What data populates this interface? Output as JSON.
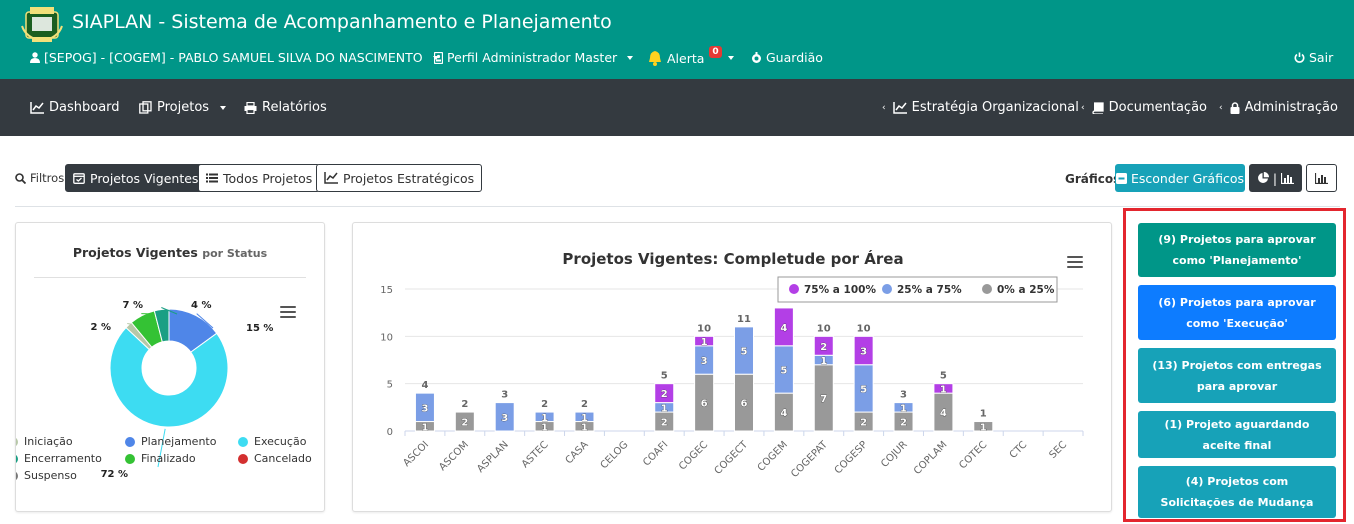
{
  "header": {
    "app_title": "SIAPLAN - Sistema de Acompanhamento e Planejamento",
    "user_label": "[SEPOG] - [COGEM] - PABLO SAMUEL SILVA DO NASCIMENTO",
    "profile_label": "Perfil Administrador Master",
    "alert_label": "Alerta",
    "alert_count": "0",
    "guardian_label": "Guardião",
    "logout_label": "Sair"
  },
  "nav": {
    "dashboard": "Dashboard",
    "projects": "Projetos",
    "reports": "Relatórios",
    "strategy": "Estratégia Organizacional",
    "docs": "Documentação",
    "admin": "Administração"
  },
  "filters": {
    "label": "Filtros:",
    "current": "Projetos Vigentes",
    "all": "Todos Projetos",
    "strategic": "Projetos Estratégicos",
    "charts_label": "Gráficos:",
    "hide_charts": "Esconder Gráficos",
    "chart_type_pie_bar": "|",
    "colors": {
      "teal": "#17a2b8",
      "dark": "#343a40"
    }
  },
  "pie_chart": {
    "title": "Projetos Vigentes",
    "subtitle": "por Status",
    "chart_data": {
      "type": "pie",
      "slices": [
        {
          "name": "Planejamento",
          "value": 15,
          "label": "15 %",
          "color": "#4f86e8"
        },
        {
          "name": "Execução",
          "value": 72,
          "label": "72 %",
          "color": "#3ddcf2"
        },
        {
          "name": "Iniciação",
          "value": 2,
          "label": "2 %",
          "color": "#b7c8a8"
        },
        {
          "name": "Finalizado",
          "value": 7,
          "label": "7 %",
          "color": "#34c234"
        },
        {
          "name": "Encerramento",
          "value": 4,
          "label": "4 %",
          "color": "#1a9f84"
        }
      ]
    },
    "legend": [
      {
        "label": "Iniciação",
        "color": "#b7c8a8"
      },
      {
        "label": "Planejamento",
        "color": "#4f86e8"
      },
      {
        "label": "Execução",
        "color": "#3ddcf2"
      },
      {
        "label": "Encerramento",
        "color": "#1a9f84"
      },
      {
        "label": "Finalizado",
        "color": "#34c234"
      },
      {
        "label": "Cancelado",
        "color": "#d32f2f"
      },
      {
        "label": "Suspenso",
        "color": "#777777"
      }
    ]
  },
  "bar_chart": {
    "title": "Projetos Vigentes: Completude por Área",
    "chart_data": {
      "type": "bar",
      "stacked": true,
      "categories": [
        "ASCOI",
        "ASCOM",
        "ASPLAN",
        "ASTEC",
        "CASA",
        "CELOG",
        "COAFI",
        "COGEC",
        "COGECT",
        "COGEM",
        "COGEPAT",
        "COGESP",
        "COJUR",
        "COPLAM",
        "COTEC",
        "CTC",
        "SEC"
      ],
      "ylim": [
        0,
        15
      ],
      "yticks": [
        0,
        5,
        10,
        15
      ],
      "series": [
        {
          "name": "0% a 25%",
          "color": "#999999",
          "values": [
            1,
            2,
            0,
            1,
            1,
            0,
            2,
            6,
            6,
            4,
            7,
            2,
            2,
            4,
            1,
            0,
            0
          ]
        },
        {
          "name": "25% a 75%",
          "color": "#7b9ee6",
          "values": [
            3,
            0,
            3,
            1,
            1,
            0,
            1,
            3,
            5,
            5,
            1,
            5,
            1,
            0,
            0,
            0,
            0
          ]
        },
        {
          "name": "75% a 100%",
          "color": "#b33fe6",
          "values": [
            0,
            0,
            0,
            0,
            0,
            0,
            2,
            1,
            0,
            4,
            2,
            3,
            0,
            1,
            0,
            0,
            0
          ]
        }
      ],
      "totals": [
        "4",
        "2",
        "3",
        "2",
        "2",
        "",
        "5",
        "10",
        "11",
        "",
        "10",
        "10",
        "3",
        "5",
        "1",
        "",
        ""
      ],
      "legend_order": [
        "75% a 100%",
        "25% a 75%",
        "0% a 25%"
      ]
    }
  },
  "side_buttons": [
    {
      "label": "(9) Projetos para aprovar como 'Planejamento'",
      "color": "#009688"
    },
    {
      "label": "(6) Projetos para aprovar como 'Execução'",
      "color": "#0d7cff"
    },
    {
      "label": "(13) Projetos com entregas para aprovar",
      "color": "#17a2b8"
    },
    {
      "label": "(1) Projeto aguardando aceite final",
      "color": "#17a2b8"
    },
    {
      "label": "(4) Projetos com Solicitações de Mudança",
      "color": "#17a2b8"
    }
  ]
}
